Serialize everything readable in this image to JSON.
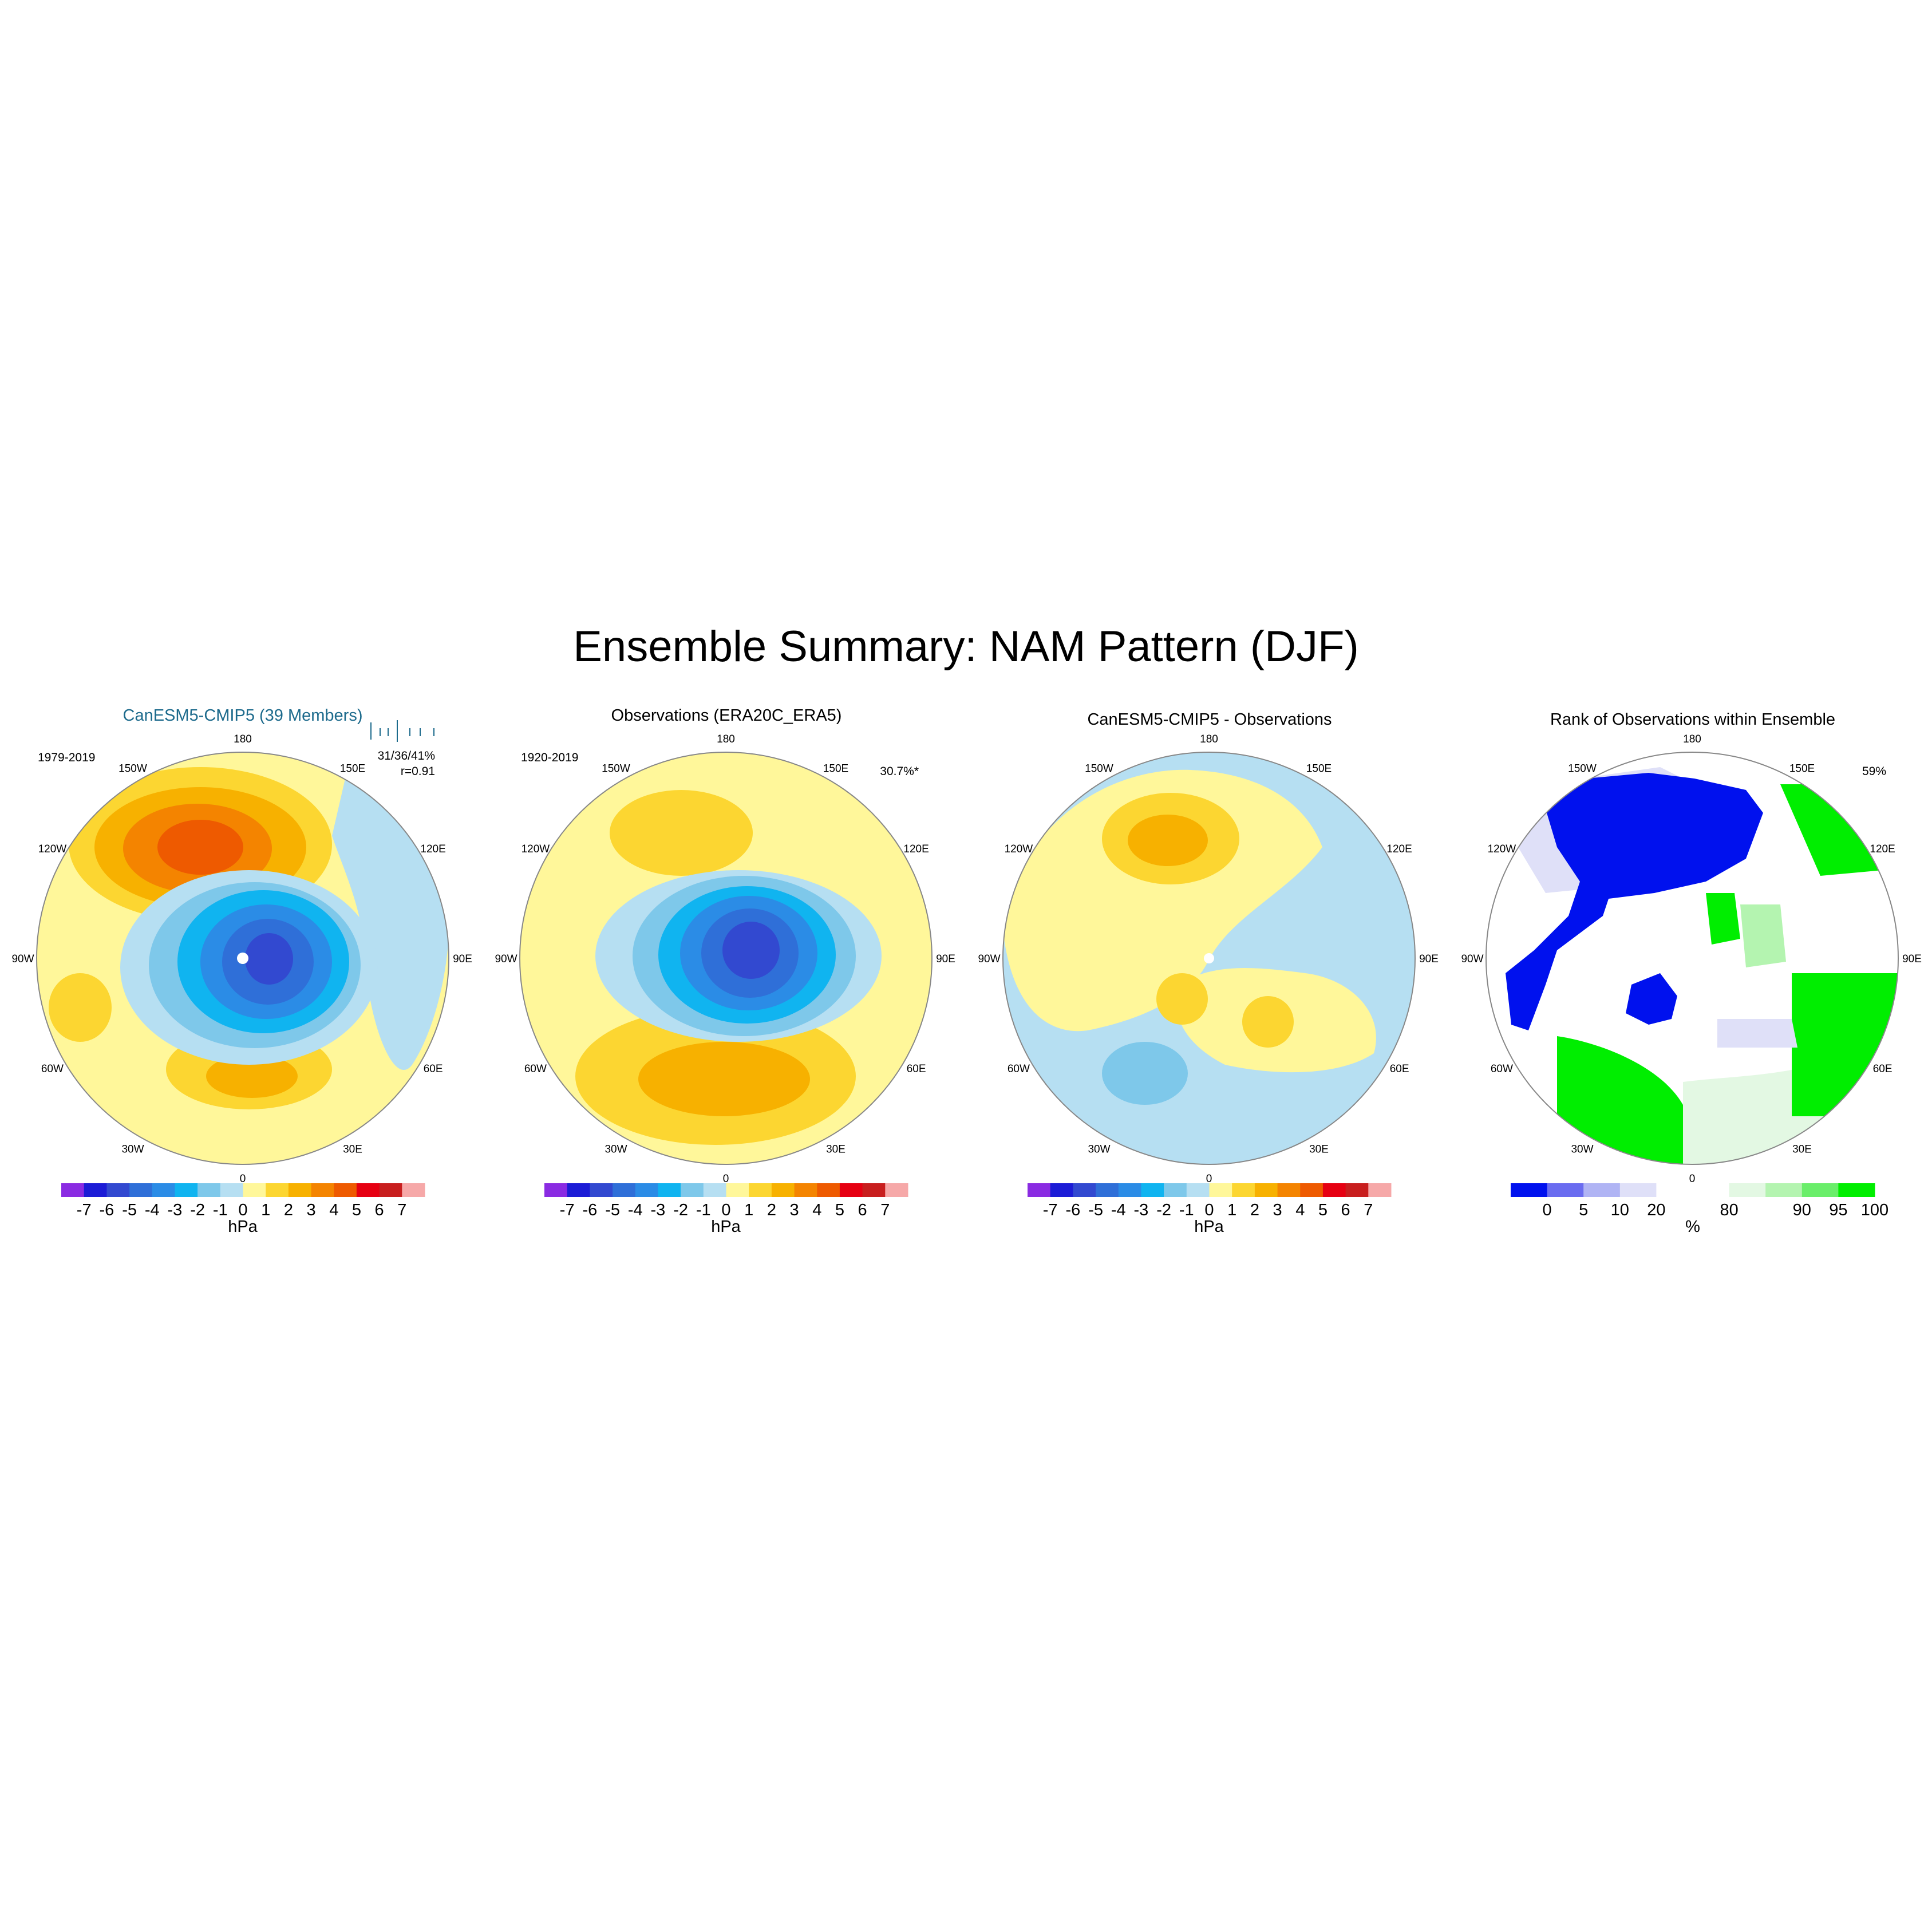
{
  "title": "Ensemble Summary: NAM Pattern (DJF)",
  "panels": [
    {
      "title": "CanESM5-CMIP5 (39 Members)",
      "period": "1979-2019",
      "stat_line1": "31/36/41%",
      "stat_line2": "r=0.91",
      "longitude_labels": [
        "180",
        "150E",
        "120E",
        "90E",
        "60E",
        "30E",
        "0",
        "30W",
        "60W",
        "90W",
        "120W",
        "150W"
      ]
    },
    {
      "title": "Observations (ERA20C_ERA5)",
      "period": "1920-2019",
      "stat_line1": "30.7%*",
      "longitude_labels": [
        "180",
        "150E",
        "120E",
        "90E",
        "60E",
        "30E",
        "0",
        "30W",
        "60W",
        "90W",
        "120W",
        "150W"
      ]
    },
    {
      "title": "CanESM5-CMIP5 - Observations",
      "longitude_labels": [
        "180",
        "150E",
        "120E",
        "90E",
        "60E",
        "30E",
        "0",
        "30W",
        "60W",
        "90W",
        "120W",
        "150W"
      ]
    },
    {
      "title": "Rank of Observations within Ensemble",
      "stat_line1": "59%",
      "longitude_labels": [
        "180",
        "150E",
        "120E",
        "90E",
        "60E",
        "30E",
        "0",
        "30W",
        "60W",
        "90W",
        "120W",
        "150W"
      ]
    }
  ],
  "colorbar_hpa": {
    "unit": "hPa",
    "tick_labels": [
      "-7",
      "-6",
      "-5",
      "-4",
      "-3",
      "-2",
      "-1",
      "0",
      "1",
      "2",
      "3",
      "4",
      "5",
      "6",
      "7"
    ],
    "colors": [
      "#8a2be2",
      "#1c1cd6",
      "#3249d0",
      "#2f6fd8",
      "#2b8ce6",
      "#10b4f0",
      "#7ec8ea",
      "#b6dff2",
      "#fff79a",
      "#fcd631",
      "#f7b100",
      "#f48400",
      "#ee5a00",
      "#e60012",
      "#c81e1e",
      "#f6a8a8"
    ]
  },
  "colorbar_rank": {
    "unit": "%",
    "tick_labels": [
      "0",
      "5",
      "10",
      "20",
      "80",
      "90",
      "95",
      "100"
    ],
    "colors": [
      "#0011ee",
      "#6a6cf0",
      "#b0b4f4",
      "#dfe0f8",
      "#ffffff",
      "#ffffff",
      "#e3f8e3",
      "#b4f4b0",
      "#6aee6a",
      "#00ee00"
    ]
  },
  "map_colors": {
    "yellow": "#fff79a",
    "gold": "#fcd631",
    "orange": "#f7b100",
    "dark_orange": "#f48400",
    "red_orange": "#ee5a00",
    "light_blue": "#b6dff2",
    "blue1": "#7ec8ea",
    "blue2": "#10b4f0",
    "blue3": "#2b8ce6",
    "blue4": "#2f6fd8",
    "blue5": "#3249d0",
    "rank_blue": "#0011ee",
    "rank_pale_blue": "#dfe0f8",
    "rank_green": "#00ee00",
    "rank_light_green": "#b4f4b0",
    "rank_pale_green": "#e3f8e3"
  }
}
